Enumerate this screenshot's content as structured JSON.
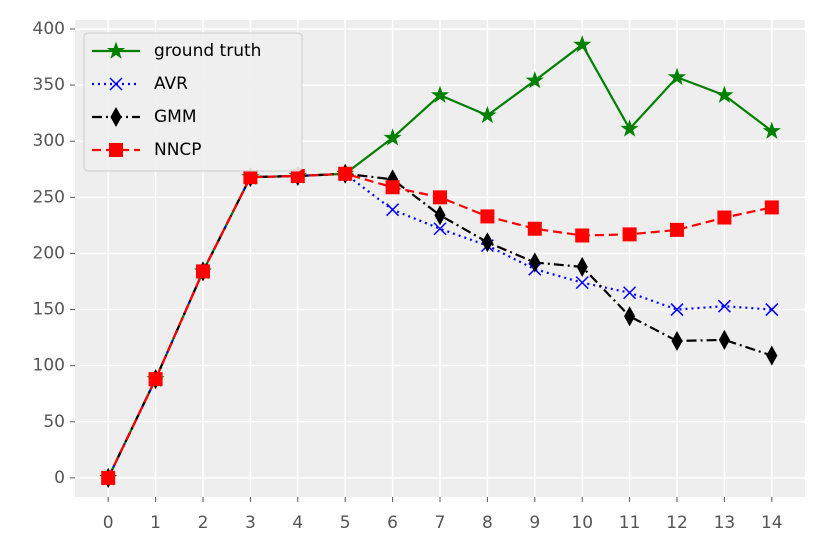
{
  "chart_data": {
    "type": "line",
    "x": [
      0,
      1,
      2,
      3,
      4,
      5,
      6,
      7,
      8,
      9,
      10,
      11,
      12,
      13,
      14
    ],
    "series": [
      {
        "name": "ground truth",
        "color": "#008000",
        "linestyle": "solid",
        "marker": "star",
        "values": [
          0,
          88,
          184,
          268,
          269,
          271,
          303,
          341,
          323,
          354,
          386,
          311,
          357,
          341,
          309
        ]
      },
      {
        "name": "AVR",
        "color": "#0000ff",
        "linestyle": "dotted",
        "marker": "x",
        "values": [
          0,
          88,
          184,
          268,
          269,
          271,
          239,
          222,
          207,
          186,
          174,
          165,
          150,
          153,
          150
        ]
      },
      {
        "name": "GMM",
        "color": "#000000",
        "linestyle": "dashdot",
        "marker": "thin_diamond",
        "values": [
          0,
          88,
          184,
          268,
          269,
          271,
          266,
          234,
          210,
          192,
          188,
          144,
          122,
          123,
          109
        ]
      },
      {
        "name": "NNCP",
        "color": "#ff0000",
        "linestyle": "dashed",
        "marker": "square",
        "values": [
          0,
          88,
          184,
          268,
          269,
          271,
          259,
          250,
          233,
          222,
          216,
          217,
          221,
          232,
          241
        ]
      }
    ],
    "xlim": [
      -0.7,
      14.7
    ],
    "xticks": [
      0,
      1,
      2,
      3,
      4,
      5,
      6,
      7,
      8,
      9,
      10,
      11,
      12,
      13,
      14
    ],
    "ylim": [
      -17,
      408
    ],
    "yticks": [
      0,
      50,
      100,
      150,
      200,
      250,
      300,
      350,
      400
    ],
    "grid": true,
    "legend": "upper left"
  }
}
